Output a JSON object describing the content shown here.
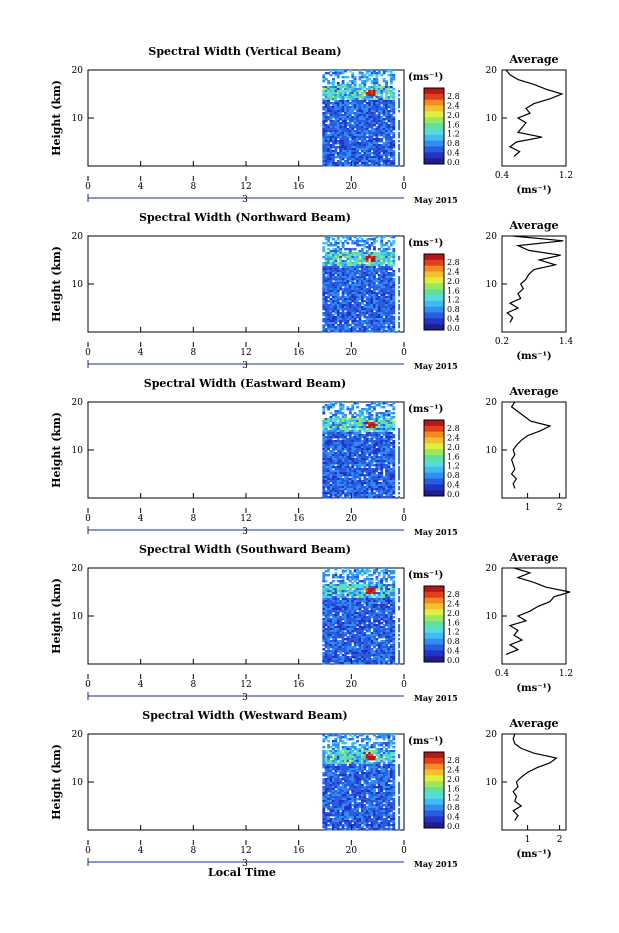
{
  "chart_data": [
    {
      "type": "heatmap",
      "title": "Spectral Width (Vertical Beam)",
      "ylabel": "Height (km)",
      "xticks": [
        "0",
        "4",
        "8",
        "12",
        "16",
        "20",
        "0"
      ],
      "yticks": [
        "20",
        "10"
      ],
      "date_marker": "3",
      "date_label": "May 2015",
      "colorbar_unit": "(ms⁻¹)",
      "colorbar_ticks": [
        "2.8",
        "2.4",
        "2.0",
        "1.6",
        "1.2",
        "0.8",
        "0.4",
        "0.0"
      ],
      "average_title": "Average",
      "average_xticks": [
        "0.4",
        "1.2"
      ],
      "average_yticks": [
        "20",
        "10"
      ],
      "average_unit": "(ms⁻¹)",
      "average_profile": [
        [
          0.55,
          2
        ],
        [
          0.62,
          3
        ],
        [
          0.5,
          4
        ],
        [
          0.58,
          5
        ],
        [
          0.9,
          6
        ],
        [
          0.6,
          7
        ],
        [
          0.65,
          8
        ],
        [
          0.7,
          9
        ],
        [
          0.6,
          10
        ],
        [
          0.75,
          11
        ],
        [
          0.7,
          12
        ],
        [
          0.8,
          13
        ],
        [
          1.0,
          14
        ],
        [
          1.15,
          15
        ],
        [
          0.95,
          16
        ],
        [
          0.8,
          17
        ],
        [
          0.6,
          18
        ],
        [
          0.5,
          19
        ],
        [
          0.45,
          20
        ]
      ]
    },
    {
      "type": "heatmap",
      "title": "Spectral Width (Northward Beam)",
      "ylabel": "Height (km)",
      "xticks": [
        "0",
        "4",
        "8",
        "12",
        "16",
        "20",
        "0"
      ],
      "yticks": [
        "20",
        "10"
      ],
      "date_marker": "3",
      "date_label": "May 2015",
      "colorbar_unit": "(ms⁻¹)",
      "colorbar_ticks": [
        "2.8",
        "2.4",
        "2.0",
        "1.6",
        "1.2",
        "0.8",
        "0.4",
        "0.0"
      ],
      "average_title": "Average",
      "average_xticks": [
        "0.2",
        "1.4"
      ],
      "average_yticks": [
        "20",
        "10"
      ],
      "average_unit": "(ms⁻¹)",
      "average_profile": [
        [
          0.35,
          2
        ],
        [
          0.4,
          3
        ],
        [
          0.3,
          4
        ],
        [
          0.5,
          5
        ],
        [
          0.35,
          6
        ],
        [
          0.55,
          7
        ],
        [
          0.5,
          8
        ],
        [
          0.6,
          9
        ],
        [
          0.55,
          10
        ],
        [
          0.65,
          11
        ],
        [
          0.7,
          12
        ],
        [
          0.8,
          13
        ],
        [
          1.2,
          14
        ],
        [
          0.9,
          15
        ],
        [
          1.3,
          16
        ],
        [
          0.7,
          17
        ],
        [
          0.5,
          18
        ],
        [
          1.35,
          19
        ],
        [
          0.4,
          20
        ]
      ]
    },
    {
      "type": "heatmap",
      "title": "Spectral Width (Eastward Beam)",
      "ylabel": "Height (km)",
      "xticks": [
        "0",
        "4",
        "8",
        "12",
        "16",
        "20",
        "0"
      ],
      "yticks": [
        "20",
        "10"
      ],
      "date_marker": "3",
      "date_label": "May 2015",
      "colorbar_unit": "(ms⁻¹)",
      "colorbar_ticks": [
        "2.8",
        "2.4",
        "2.0",
        "1.6",
        "1.2",
        "0.8",
        "0.4",
        "0.0"
      ],
      "average_title": "Average",
      "average_xticks": [
        "1",
        "2"
      ],
      "average_yticks": [
        "20",
        "10"
      ],
      "average_unit": "",
      "average_profile": [
        [
          0.6,
          2
        ],
        [
          0.55,
          3
        ],
        [
          0.65,
          4
        ],
        [
          0.5,
          5
        ],
        [
          0.6,
          6
        ],
        [
          0.55,
          7
        ],
        [
          0.5,
          8
        ],
        [
          0.6,
          9
        ],
        [
          0.55,
          10
        ],
        [
          0.65,
          11
        ],
        [
          0.8,
          12
        ],
        [
          1.0,
          13
        ],
        [
          1.4,
          14
        ],
        [
          1.7,
          15
        ],
        [
          1.1,
          16
        ],
        [
          0.9,
          17
        ],
        [
          0.7,
          18
        ],
        [
          0.5,
          19
        ],
        [
          0.6,
          20
        ]
      ]
    },
    {
      "type": "heatmap",
      "title": "Spectral Width (Southward Beam)",
      "ylabel": "Height (km)",
      "xticks": [
        "0",
        "4",
        "8",
        "12",
        "16",
        "20",
        "0"
      ],
      "yticks": [
        "20",
        "10"
      ],
      "date_marker": "3",
      "date_label": "May 2015",
      "colorbar_unit": "(ms⁻¹)",
      "colorbar_ticks": [
        "2.8",
        "2.4",
        "2.0",
        "1.6",
        "1.2",
        "0.8",
        "0.4",
        "0.0"
      ],
      "average_title": "Average",
      "average_xticks": [
        "0.4",
        "1.2"
      ],
      "average_yticks": [
        "20",
        "10"
      ],
      "average_unit": "(ms⁻¹)",
      "average_profile": [
        [
          0.45,
          2
        ],
        [
          0.6,
          3
        ],
        [
          0.5,
          4
        ],
        [
          0.65,
          5
        ],
        [
          0.55,
          6
        ],
        [
          0.6,
          7
        ],
        [
          0.5,
          8
        ],
        [
          0.7,
          9
        ],
        [
          0.6,
          10
        ],
        [
          0.75,
          11
        ],
        [
          0.85,
          12
        ],
        [
          1.0,
          13
        ],
        [
          1.05,
          14
        ],
        [
          1.25,
          15
        ],
        [
          0.95,
          16
        ],
        [
          0.8,
          17
        ],
        [
          0.6,
          18
        ],
        [
          0.75,
          19
        ],
        [
          0.55,
          20
        ]
      ]
    },
    {
      "type": "heatmap",
      "title": "Spectral Width (Westward Beam)",
      "ylabel": "Height (km)",
      "xticks": [
        "0",
        "4",
        "8",
        "12",
        "16",
        "20",
        "0"
      ],
      "yticks": [
        "20",
        "10"
      ],
      "date_marker": "3",
      "date_label": "May 2015",
      "colorbar_unit": "(ms⁻¹)",
      "colorbar_ticks": [
        "2.8",
        "2.4",
        "2.0",
        "1.6",
        "1.2",
        "0.8",
        "0.4",
        "0.0"
      ],
      "average_title": "Average",
      "average_xticks": [
        "1",
        "2"
      ],
      "average_yticks": [
        "20",
        "10"
      ],
      "average_unit": "(ms⁻¹)",
      "average_profile": [
        [
          0.6,
          2
        ],
        [
          0.7,
          3
        ],
        [
          0.55,
          4
        ],
        [
          0.8,
          5
        ],
        [
          0.6,
          6
        ],
        [
          0.65,
          7
        ],
        [
          0.55,
          8
        ],
        [
          0.7,
          9
        ],
        [
          0.65,
          10
        ],
        [
          0.8,
          11
        ],
        [
          1.0,
          12
        ],
        [
          1.3,
          13
        ],
        [
          1.7,
          14
        ],
        [
          1.9,
          15
        ],
        [
          1.2,
          16
        ],
        [
          0.8,
          17
        ],
        [
          0.6,
          18
        ],
        [
          0.55,
          19
        ],
        [
          0.6,
          20
        ]
      ]
    }
  ],
  "footer": {
    "xlabel": "Local Time"
  }
}
